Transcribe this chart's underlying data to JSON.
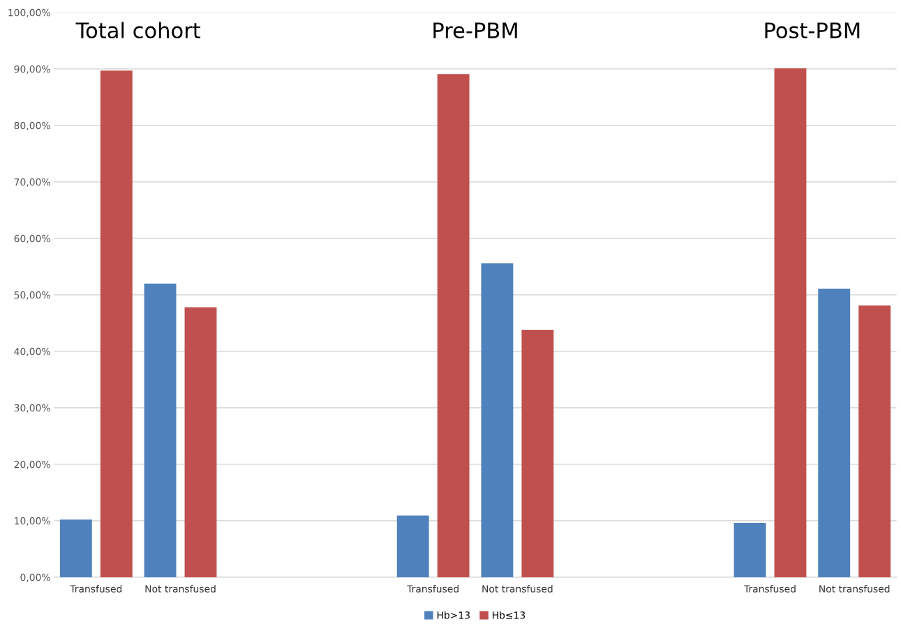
{
  "chart_data": {
    "type": "bar",
    "categories": [
      "Transfused",
      "Not transfused",
      null,
      null,
      "Transfused",
      "Not transfused",
      null,
      null,
      "Transfused",
      "Not transfused"
    ],
    "series": [
      {
        "name": "Hb>13",
        "color": "#4f81bd",
        "values": [
          10.2,
          52.0,
          null,
          null,
          10.9,
          55.6,
          null,
          null,
          9.6,
          51.1
        ]
      },
      {
        "name": "Hb≤13",
        "color": "#c0504d",
        "values": [
          89.7,
          47.8,
          null,
          null,
          89.1,
          43.8,
          null,
          null,
          90.1,
          48.1
        ]
      }
    ],
    "annotations": [
      "Total cohort",
      "Pre-PBM",
      "Post-PBM"
    ],
    "ylim": [
      0,
      100
    ],
    "yticks": [
      {
        "value": 0,
        "label": "0,00%"
      },
      {
        "value": 10,
        "label": "10,00%"
      },
      {
        "value": 20,
        "label": "20,00%"
      },
      {
        "value": 30,
        "label": "30,00%"
      },
      {
        "value": 40,
        "label": "40,00%"
      },
      {
        "value": 50,
        "label": "50,00%"
      },
      {
        "value": 60,
        "label": "60,00%"
      },
      {
        "value": 70,
        "label": "70,00%"
      },
      {
        "value": 80,
        "label": "80,00%"
      },
      {
        "value": 90,
        "label": "90,00%"
      },
      {
        "value": 100,
        "label": "100,00%"
      }
    ],
    "grid": "y",
    "legend": "bottom"
  }
}
